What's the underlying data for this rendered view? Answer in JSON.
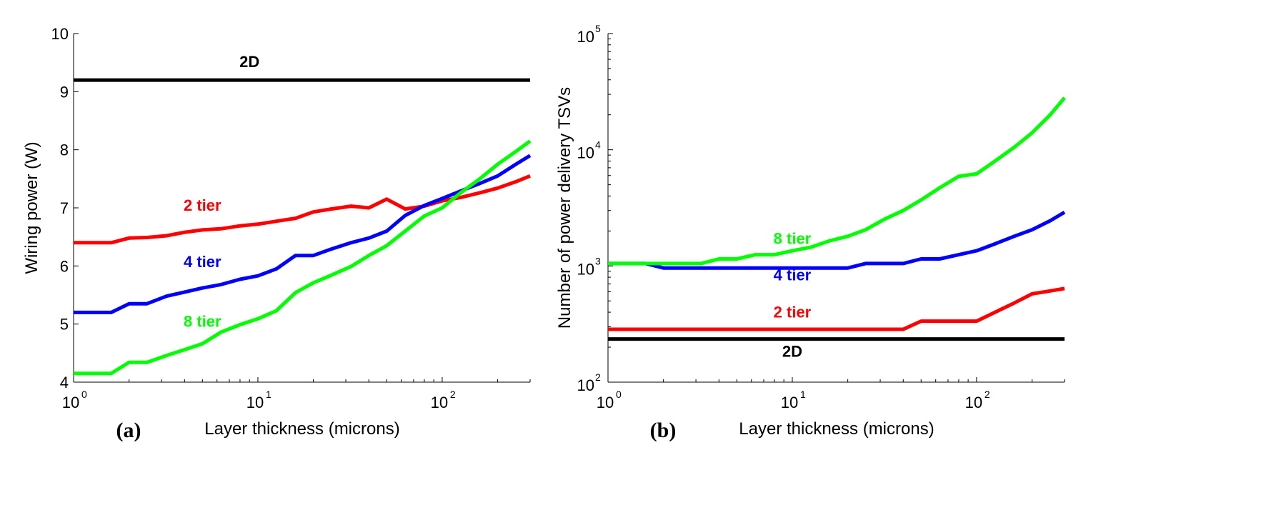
{
  "chart_data": [
    {
      "type": "line",
      "panel_label": "(a)",
      "xlabel": "Layer thickness (microns)",
      "ylabel": "Wiring power (W)",
      "xscale": "log",
      "xlim": [
        1,
        300
      ],
      "ylim": [
        4,
        10
      ],
      "x_ticks": [
        {
          "base": "10",
          "exp": "0"
        },
        {
          "base": "10",
          "exp": "1"
        },
        {
          "base": "10",
          "exp": "2"
        }
      ],
      "y_ticks": [
        "4",
        "5",
        "6",
        "7",
        "8",
        "9",
        "10"
      ],
      "grid": false,
      "series": [
        {
          "name": "2D",
          "color": "#000000",
          "x": [
            1,
            300
          ],
          "y": [
            9.2,
            9.2
          ]
        },
        {
          "name": "2 tier",
          "color": "#ff0000",
          "x": [
            1,
            1.6,
            2,
            2.5,
            3.2,
            4,
            5,
            6.3,
            8,
            10,
            12.6,
            16,
            20,
            25,
            32,
            40,
            50,
            63,
            80,
            100,
            126,
            160,
            200,
            251,
            300
          ],
          "y": [
            6.4,
            6.4,
            6.48,
            6.49,
            6.52,
            6.58,
            6.62,
            6.64,
            6.69,
            6.72,
            6.77,
            6.82,
            6.93,
            6.98,
            7.03,
            7.0,
            7.15,
            6.98,
            7.03,
            7.12,
            7.18,
            7.26,
            7.34,
            7.45,
            7.55
          ]
        },
        {
          "name": "4 tier",
          "color": "#0000ff",
          "x": [
            1,
            1.6,
            2,
            2.5,
            3.2,
            4,
            5,
            6.3,
            8,
            10,
            12.6,
            16,
            20,
            25,
            32,
            40,
            50,
            63,
            80,
            100,
            126,
            160,
            200,
            251,
            300
          ],
          "y": [
            5.2,
            5.2,
            5.35,
            5.35,
            5.48,
            5.55,
            5.62,
            5.68,
            5.77,
            5.83,
            5.95,
            6.18,
            6.18,
            6.29,
            6.4,
            6.48,
            6.6,
            6.87,
            7.04,
            7.16,
            7.29,
            7.42,
            7.55,
            7.75,
            7.9
          ]
        },
        {
          "name": "8 tier",
          "color": "#00ff00",
          "x": [
            1,
            1.6,
            2,
            2.5,
            3.2,
            4,
            5,
            6.3,
            8,
            10,
            12.6,
            16,
            20,
            25,
            32,
            40,
            50,
            63,
            80,
            100,
            126,
            160,
            200,
            251,
            300
          ],
          "y": [
            4.15,
            4.15,
            4.34,
            4.34,
            4.46,
            4.56,
            4.66,
            4.86,
            4.99,
            5.09,
            5.23,
            5.54,
            5.71,
            5.84,
            5.99,
            6.18,
            6.35,
            6.6,
            6.86,
            7.0,
            7.26,
            7.5,
            7.75,
            7.97,
            8.15
          ]
        }
      ],
      "annotations": [
        {
          "text": "2D",
          "color": "#000000",
          "x": 9,
          "y": 9.42
        },
        {
          "text": "2 tier",
          "color": "#ff0000",
          "x": 5,
          "y": 6.95
        },
        {
          "text": "4 tier",
          "color": "#0000ff",
          "x": 5,
          "y": 5.98
        },
        {
          "text": "8 tier",
          "color": "#00ff00",
          "x": 5,
          "y": 4.95
        }
      ]
    },
    {
      "type": "line",
      "panel_label": "(b)",
      "xlabel": "Layer thickness (microns)",
      "ylabel": "Number of power delivery TSVs",
      "xscale": "log",
      "yscale": "log",
      "xlim": [
        1,
        300
      ],
      "ylim": [
        100,
        100000
      ],
      "x_ticks": [
        {
          "base": "10",
          "exp": "0"
        },
        {
          "base": "10",
          "exp": "1"
        },
        {
          "base": "10",
          "exp": "2"
        }
      ],
      "y_ticks": [
        {
          "base": "10",
          "exp": "2"
        },
        {
          "base": "10",
          "exp": "3"
        },
        {
          "base": "10",
          "exp": "4"
        },
        {
          "base": "10",
          "exp": "5"
        }
      ],
      "grid": false,
      "series": [
        {
          "name": "2D",
          "color": "#000000",
          "x": [
            1,
            300
          ],
          "y": [
            235,
            235
          ]
        },
        {
          "name": "2 tier",
          "color": "#ff0000",
          "x": [
            1,
            1.6,
            2,
            2.5,
            3.2,
            4,
            5,
            6.3,
            8,
            10,
            12.6,
            16,
            20,
            25,
            32,
            40,
            50,
            63,
            80,
            100,
            126,
            160,
            200,
            251,
            300
          ],
          "y": [
            285,
            285,
            285,
            285,
            285,
            285,
            285,
            285,
            285,
            285,
            285,
            285,
            285,
            285,
            285,
            285,
            335,
            335,
            335,
            335,
            400,
            480,
            575,
            610,
            640
          ]
        },
        {
          "name": "4 tier",
          "color": "#0000ff",
          "x": [
            1,
            1.6,
            2,
            2.5,
            3.2,
            4,
            5,
            6.3,
            8,
            10,
            12.6,
            16,
            20,
            25,
            32,
            40,
            50,
            63,
            80,
            100,
            126,
            160,
            200,
            251,
            300
          ],
          "y": [
            1050,
            1050,
            960,
            960,
            960,
            960,
            960,
            960,
            960,
            960,
            960,
            960,
            960,
            1050,
            1050,
            1050,
            1150,
            1150,
            1250,
            1350,
            1550,
            1800,
            2050,
            2450,
            2900
          ]
        },
        {
          "name": "8 tier",
          "color": "#00ff00",
          "x": [
            1,
            1.6,
            2,
            2.5,
            3.2,
            4,
            5,
            6.3,
            8,
            10,
            12.6,
            16,
            20,
            25,
            32,
            40,
            50,
            63,
            80,
            100,
            126,
            160,
            200,
            251,
            300
          ],
          "y": [
            1050,
            1050,
            1050,
            1050,
            1050,
            1150,
            1150,
            1250,
            1250,
            1350,
            1450,
            1650,
            1800,
            2050,
            2550,
            3000,
            3700,
            4700,
            5900,
            6200,
            8000,
            10500,
            14000,
            20000,
            28000
          ]
        }
      ],
      "annotations": [
        {
          "text": "8 tier",
          "color": "#00ff00",
          "x": 10,
          "y": 1550
        },
        {
          "text": "4 tier",
          "color": "#0000ff",
          "x": 10,
          "y": 750
        },
        {
          "text": "2 tier",
          "color": "#ff0000",
          "x": 10,
          "y": 360
        },
        {
          "text": "2D",
          "color": "#000000",
          "x": 10,
          "y": 165
        }
      ]
    }
  ]
}
